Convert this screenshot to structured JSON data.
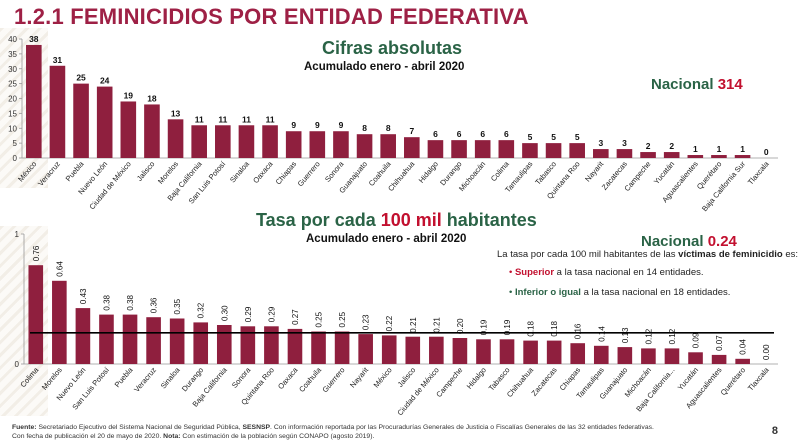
{
  "page": {
    "title": "1.2.1 FEMINICIDIOS POR ENTIDAD FEDERATIVA",
    "page_number": "8"
  },
  "colors": {
    "bar": "#8f1f3e",
    "title": "#9e2045",
    "green": "#2a6346",
    "red": "#c2102f",
    "reference_line": "#000000"
  },
  "top": {
    "title": "Cifras absolutas",
    "subtitle": "Acumulado enero - abril 2020",
    "nacional_label": "Nacional",
    "nacional_value": "314"
  },
  "bottom": {
    "title_before": "Tasa por cada",
    "title_highlight": "100 mil",
    "title_after": "habitantes",
    "subtitle": "Acumulado enero - abril 2020",
    "nacional_label": "Nacional",
    "nacional_value": "0.24"
  },
  "note": {
    "intro_part1": "La tasa por cada 100 mil habitantes de las",
    "intro_bold": "víctimas de feminicidio",
    "intro_part2": "es:",
    "item1_bold": "Superior",
    "item1_rest": "a la tasa nacional en 14 entidades.",
    "item2_bold": "Inferior o igual",
    "item2_rest": "a la tasa nacional en 18 entidades."
  },
  "footer": {
    "fuente_label": "Fuente:",
    "fuente_text": "Secretariado Ejecutivo del Sistema Nacional de Seguridad Pública,",
    "sesnsp": "SESNSP",
    "fuente_text2": ". Con información reportada por las Procuradurías Generales de Justicia o Fiscalías Generales de las 32 entidades federativas.",
    "line2": "Con fecha de publicación el 20  de mayo de 2020.",
    "nota_label": "Nota:",
    "nota_text": "Con estimación de la población según CONAPO (agosto 2019)."
  },
  "chart_data": [
    {
      "type": "bar",
      "title": "Cifras absolutas",
      "subtitle": "Acumulado enero - abril 2020",
      "ylim": [
        0,
        40
      ],
      "yticks": [
        0,
        5,
        10,
        15,
        20,
        25,
        30,
        35,
        40
      ],
      "categories": [
        "México",
        "Veracruz",
        "Puebla",
        "Nuevo León",
        "Ciudad de México",
        "Jalisco",
        "Morelos",
        "Baja California",
        "San Luis Potosí",
        "Sinaloa",
        "Oaxaca",
        "Chiapas",
        "Guerrero",
        "Sonora",
        "Guanajuato",
        "Coahuila",
        "Chihuahua",
        "Hidalgo",
        "Durango",
        "Michoacán",
        "Colima",
        "Tamaulipas",
        "Tabasco",
        "Quintana Roo",
        "Nayarit",
        "Zacatecas",
        "Campeche",
        "Yucatán",
        "Aguascalientes",
        "Querétaro",
        "Baja California Sur",
        "Tlaxcala"
      ],
      "values": [
        38,
        31,
        25,
        24,
        19,
        18,
        13,
        11,
        11,
        11,
        11,
        9,
        9,
        9,
        8,
        8,
        7,
        6,
        6,
        6,
        6,
        5,
        5,
        5,
        3,
        3,
        2,
        2,
        1,
        1,
        1,
        0
      ],
      "data_labels": [
        "38",
        "31",
        "25",
        "24",
        "19",
        "18",
        "13",
        "11",
        "11",
        "11",
        "11",
        "9",
        "9",
        "9",
        "8",
        "8",
        "7",
        "6",
        "6",
        "6",
        "6",
        "5",
        "5",
        "5",
        "3",
        "3",
        "2",
        "2",
        "1",
        "1",
        "1",
        "0"
      ]
    },
    {
      "type": "bar",
      "title": "Tasa por cada 100 mil habitantes",
      "subtitle": "Acumulado enero - abril 2020",
      "ylim": [
        0,
        1
      ],
      "yticks": [
        0,
        1
      ],
      "reference_line": 0.24,
      "categories": [
        "Colima",
        "Morelos",
        "Nuevo León",
        "San Luis Potosí",
        "Puebla",
        "Veracruz",
        "Sinaloa",
        "Durango",
        "Baja California",
        "Sonora",
        "Quintana Roo",
        "Oaxaca",
        "Coahuila",
        "Guerrero",
        "Nayarit",
        "México",
        "Jalisco",
        "Ciudad de México",
        "Campeche",
        "Hidalgo",
        "Tabasco",
        "Chihuahua",
        "Zacatecas",
        "Chiapas",
        "Tamaulipas",
        "Guanajuato",
        "Michoacán",
        "Baja California...",
        "Yucatán",
        "Aguascalientes",
        "Querétaro",
        "Tlaxcala"
      ],
      "values": [
        0.76,
        0.64,
        0.43,
        0.38,
        0.38,
        0.36,
        0.35,
        0.32,
        0.3,
        0.29,
        0.29,
        0.27,
        0.25,
        0.25,
        0.23,
        0.22,
        0.21,
        0.21,
        0.2,
        0.19,
        0.19,
        0.18,
        0.18,
        0.16,
        0.14,
        0.13,
        0.12,
        0.12,
        0.09,
        0.07,
        0.04,
        0.0
      ],
      "data_labels": [
        "0.76",
        "0.64",
        "0.43",
        "0.38",
        "0.38",
        "0.36",
        "0.35",
        "0.32",
        "0.30",
        "0.29",
        "0.29",
        "0.27",
        "0.25",
        "0.25",
        "0.23",
        "0.22",
        "0.21",
        "0.21",
        "0.20",
        "0.19",
        "0.19",
        "0.18",
        "0.18",
        "0.16",
        "0.14",
        "0.13",
        "0.12",
        "0.12",
        "0.09",
        "0.07",
        "0.04",
        "0.00"
      ]
    }
  ]
}
